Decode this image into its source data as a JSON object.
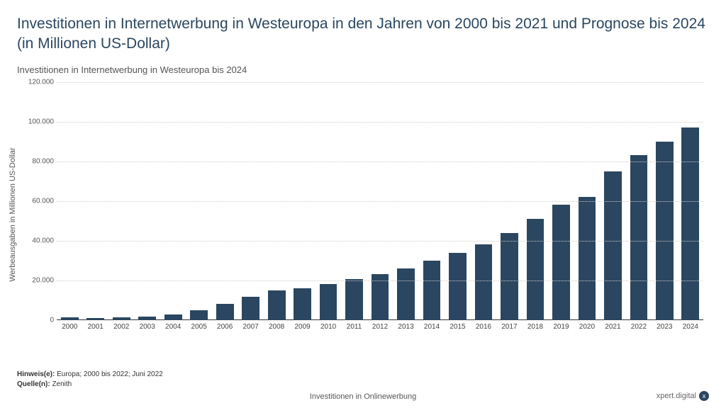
{
  "title": "Investitionen in Internetwerbung in Westeuropa in den Jahren von 2000 bis 2021 und Prognose bis 2024 (in Millionen US-Dollar)",
  "subtitle": "Investitionen in Internetwerbung in Westeuropa bis 2024",
  "chart": {
    "type": "bar",
    "y_axis_label": "Werbeausgaben in Millionen US-Dollar",
    "categories": [
      "2000",
      "2001",
      "2002",
      "2003",
      "2004",
      "2005",
      "2006",
      "2007",
      "2008",
      "2009",
      "2010",
      "2011",
      "2012",
      "2013",
      "2014",
      "2015",
      "2016",
      "2017",
      "2018",
      "2019",
      "2020",
      "2021",
      "2022",
      "2023",
      "2024"
    ],
    "values": [
      1200,
      1100,
      1300,
      1800,
      2600,
      4800,
      8200,
      11800,
      15000,
      16000,
      18200,
      20500,
      23000,
      26000,
      30000,
      34000,
      38000,
      44000,
      51000,
      58000,
      62000,
      75000,
      83000,
      90000,
      97000
    ],
    "ylim": [
      0,
      120000
    ],
    "ytick_step": 20000,
    "ytick_labels": [
      "0",
      "20.000",
      "40.000",
      "60.000",
      "80.000",
      "100.000",
      "120.000"
    ],
    "bar_color": "#2b4660",
    "grid_color": "#cccccc",
    "axis_color": "#333333",
    "background_color": "#ffffff",
    "label_fontsize": 11,
    "tick_fontsize": 10,
    "bar_width_ratio": 0.68
  },
  "note_label": "Hinweis(e): ",
  "note_text": "Europa; 2000 bis 2022; Juni 2022",
  "source_label": "Quelle(n): ",
  "source_text": "Zenith",
  "bottom_caption": "Investitionen in Onlinewerbung",
  "brand_text": "xpert.digital",
  "brand_badge": "x"
}
